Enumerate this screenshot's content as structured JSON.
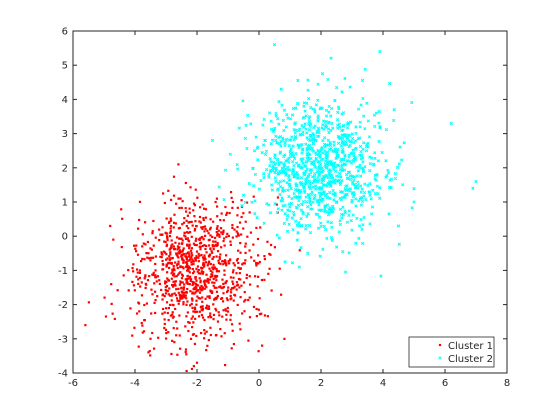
{
  "chart_data": {
    "type": "scatter",
    "title": "",
    "xlabel": "",
    "ylabel": "",
    "xlim": [
      -6,
      8
    ],
    "ylim": [
      -4,
      6
    ],
    "xticks": [
      -6,
      -4,
      -2,
      0,
      2,
      4,
      6,
      8
    ],
    "yticks": [
      -4,
      -3,
      -2,
      -1,
      0,
      1,
      2,
      3,
      4,
      5,
      6
    ],
    "grid": false,
    "legend_position": "bottom-right",
    "series": [
      {
        "name": "Cluster 1",
        "color": "#ff0000",
        "marker": "point",
        "count": 1000,
        "center": [
          -2,
          -1
        ],
        "std": [
          1,
          1
        ],
        "points": [
          [
            -5.6,
            -2.6
          ],
          [
            -4.8,
            0.3
          ],
          [
            -4.7,
            -0.1
          ],
          [
            -3.5,
            -3.0
          ],
          [
            -2.1,
            -3.8
          ],
          [
            -2.0,
            -3.7
          ],
          [
            -1.4,
            1.0
          ],
          [
            0.3,
            -1.1
          ],
          [
            0.1,
            -3.2
          ],
          [
            -2.6,
            2.1
          ]
        ]
      },
      {
        "name": "Cluster 2",
        "color": "#00ffff",
        "marker": "x",
        "count": 1000,
        "center": [
          2,
          2
        ],
        "std": [
          1,
          1
        ],
        "points": [
          [
            0.5,
            5.6
          ],
          [
            3.9,
            5.4
          ],
          [
            7.0,
            1.6
          ],
          [
            6.9,
            1.4
          ],
          [
            6.2,
            3.3
          ],
          [
            -1.5,
            2.8
          ],
          [
            1.3,
            -0.9
          ],
          [
            5.0,
            1.0
          ],
          [
            4.5,
            0.3
          ],
          [
            -0.5,
            1.2
          ]
        ]
      }
    ]
  }
}
